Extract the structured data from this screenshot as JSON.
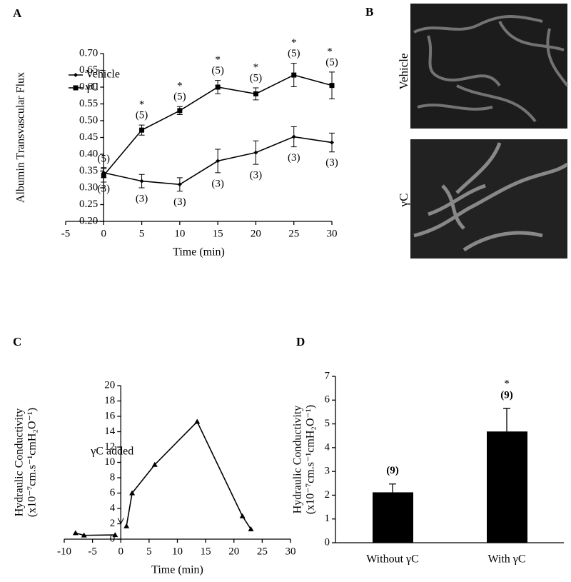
{
  "chart_data": [
    {
      "type": "line",
      "label": "A",
      "xlabel": "Time (min)",
      "ylabel": [
        "Albumin Transvascular Flux"
      ],
      "xlim": [
        -5,
        30
      ],
      "xticks": [
        -5,
        0,
        5,
        10,
        15,
        20,
        25,
        30
      ],
      "ylim": [
        0.2,
        0.7
      ],
      "yticks": [
        {
          "value": 0.2,
          "label": "0.20"
        },
        0.25,
        {
          "value": 0.3,
          "label": "0.30"
        },
        0.35,
        {
          "value": 0.4,
          "label": "0.40"
        },
        0.45,
        {
          "value": 0.5,
          "label": "0.50"
        },
        0.55,
        {
          "value": 0.6,
          "label": "0.60"
        },
        0.65,
        {
          "value": 0.7,
          "label": "0.70"
        }
      ],
      "legend": "top-left",
      "series": [
        {
          "name": "Vehicle",
          "color": "#000000",
          "marker": "diamond",
          "x": [
            0,
            5,
            10,
            15,
            20,
            25,
            30
          ],
          "values": [
            0.345,
            0.32,
            0.31,
            0.38,
            0.405,
            0.452,
            0.435
          ],
          "errors": [
            0.015,
            0.02,
            0.02,
            0.035,
            0.035,
            0.03,
            0.028
          ],
          "n_labels": [
            "(3)",
            "(3)",
            "(3)",
            "(3)",
            "(3)",
            "(3)",
            "(3)"
          ]
        },
        {
          "name": "γC",
          "color": "#000000",
          "marker": "square",
          "x": [
            0,
            5,
            10,
            15,
            20,
            25,
            30
          ],
          "values": [
            0.337,
            0.472,
            0.53,
            0.6,
            0.58,
            0.636,
            0.605
          ],
          "errors": [
            0.02,
            0.015,
            0.012,
            0.02,
            0.018,
            0.035,
            0.04
          ],
          "n_labels": [
            "(5)",
            "(5)",
            "(5)",
            "(5)",
            "(5)",
            "(5)",
            "(5)"
          ],
          "significance": [
            null,
            "*",
            "*",
            "*",
            "*",
            "*",
            "*"
          ]
        }
      ]
    },
    {
      "type": "line",
      "label": "C",
      "xlabel": "Time (min)",
      "ylabel": [
        "Hydraulic Conductivity",
        "(x10⁻⁷cm.s⁻¹cmH₂O⁻¹)"
      ],
      "xlim": [
        -10,
        30
      ],
      "xticks": [
        -10,
        -5,
        0,
        5,
        10,
        15,
        20,
        25,
        30
      ],
      "ylim": [
        0,
        20
      ],
      "yticks": [
        0,
        2,
        4,
        6,
        8,
        10,
        12,
        14,
        16,
        18,
        20
      ],
      "annotation": {
        "text": "γC added",
        "x": 0,
        "y": 2
      },
      "series": [
        {
          "color": "#000000",
          "marker": "triangle",
          "x": [
            -8,
            -6.5,
            -1
          ],
          "values": [
            0.8,
            0.5,
            0.55
          ]
        },
        {
          "color": "#000000",
          "marker": "triangle",
          "x": [
            1,
            2,
            6,
            13.5,
            21.5,
            23
          ],
          "values": [
            1.7,
            6,
            9.7,
            15.3,
            3,
            1.3
          ]
        }
      ]
    },
    {
      "type": "bar",
      "label": "D",
      "ylabel": [
        "Hydraulic Conductivity",
        "(x10⁻⁷cm.s⁻¹cmH₂O⁻¹)"
      ],
      "ylim": [
        0,
        7
      ],
      "yticks": [
        0,
        1,
        2,
        3,
        4,
        5,
        6,
        7
      ],
      "color": "#000000",
      "categories": [
        "Without γC",
        "With γC"
      ],
      "values": [
        2.12,
        4.68
      ],
      "errors": [
        0.35,
        0.97
      ],
      "n_labels": [
        "(9)",
        "(9)"
      ],
      "significance": [
        null,
        "*"
      ]
    }
  ],
  "panel_b": {
    "label": "B",
    "images": [
      {
        "label": "Vehicle"
      },
      {
        "label": "γC"
      }
    ]
  }
}
